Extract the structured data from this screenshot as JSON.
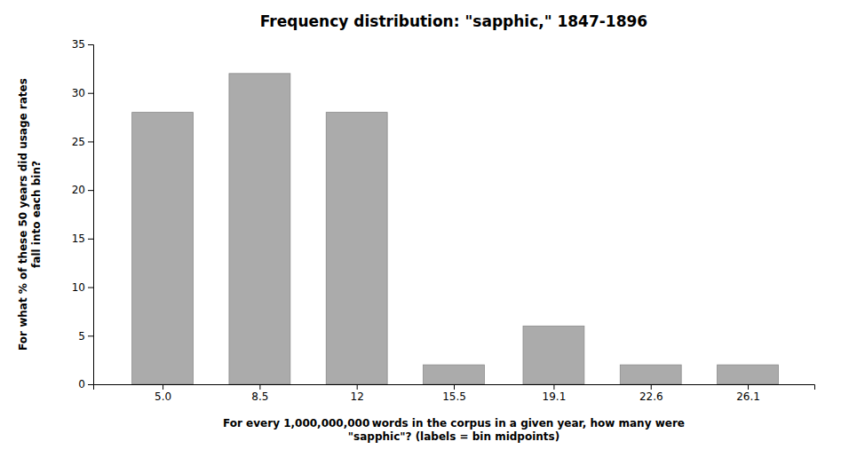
{
  "chart_data": {
    "type": "bar",
    "title": "Frequency distribution: \"sapphic,\" 1847-1896",
    "xlabel": "For every 1,000,000,000 words in the corpus in a given year, how many were\n\"sapphic\"? (labels = bin midpoints)",
    "ylabel": "For what % of these 50 years did usage rates\nfall into each bin?",
    "x": [
      5.0,
      8.5,
      12.0,
      15.5,
      19.1,
      22.6,
      26.1
    ],
    "values": [
      28,
      32,
      28,
      2,
      6,
      2,
      2
    ],
    "color": "#ABABAB",
    "xlim": [
      2.5,
      28.5
    ],
    "xticks": [
      {
        "value": 5.0,
        "label": "5.0"
      },
      8.5,
      12,
      15.5,
      19.1,
      22.6,
      26.1
    ],
    "ylim": [
      0,
      35
    ],
    "yticks": [
      0,
      5,
      10,
      15,
      20,
      25,
      30,
      35
    ],
    "grid": false
  }
}
